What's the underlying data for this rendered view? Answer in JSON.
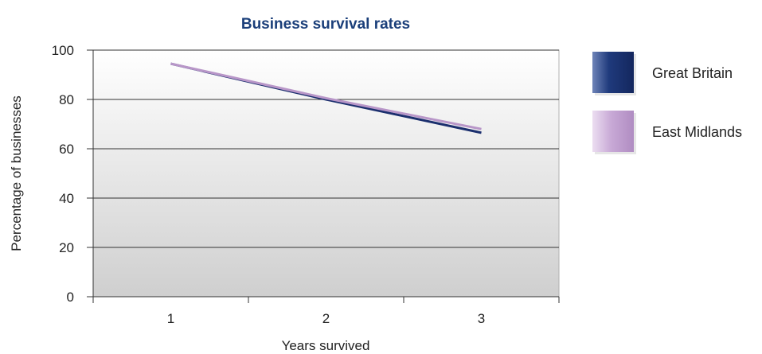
{
  "chart_data": {
    "type": "line",
    "title": "Business survival rates",
    "xlabel": "Years survived",
    "ylabel": "Percentage of businesses",
    "categories": [
      "1",
      "2",
      "3"
    ],
    "yticks": [
      "0",
      "20",
      "40",
      "60",
      "80",
      "100"
    ],
    "ylim": [
      0,
      100
    ],
    "grid": true,
    "legend_position": "right",
    "series": [
      {
        "name": "Great Britain",
        "values": [
          94.5,
          80,
          66.5
        ],
        "color": "#1b2f6e"
      },
      {
        "name": "East Midlands",
        "values": [
          94.5,
          80.5,
          68
        ],
        "color": "#b896c8"
      }
    ],
    "title_color": "#1b3f7a"
  }
}
